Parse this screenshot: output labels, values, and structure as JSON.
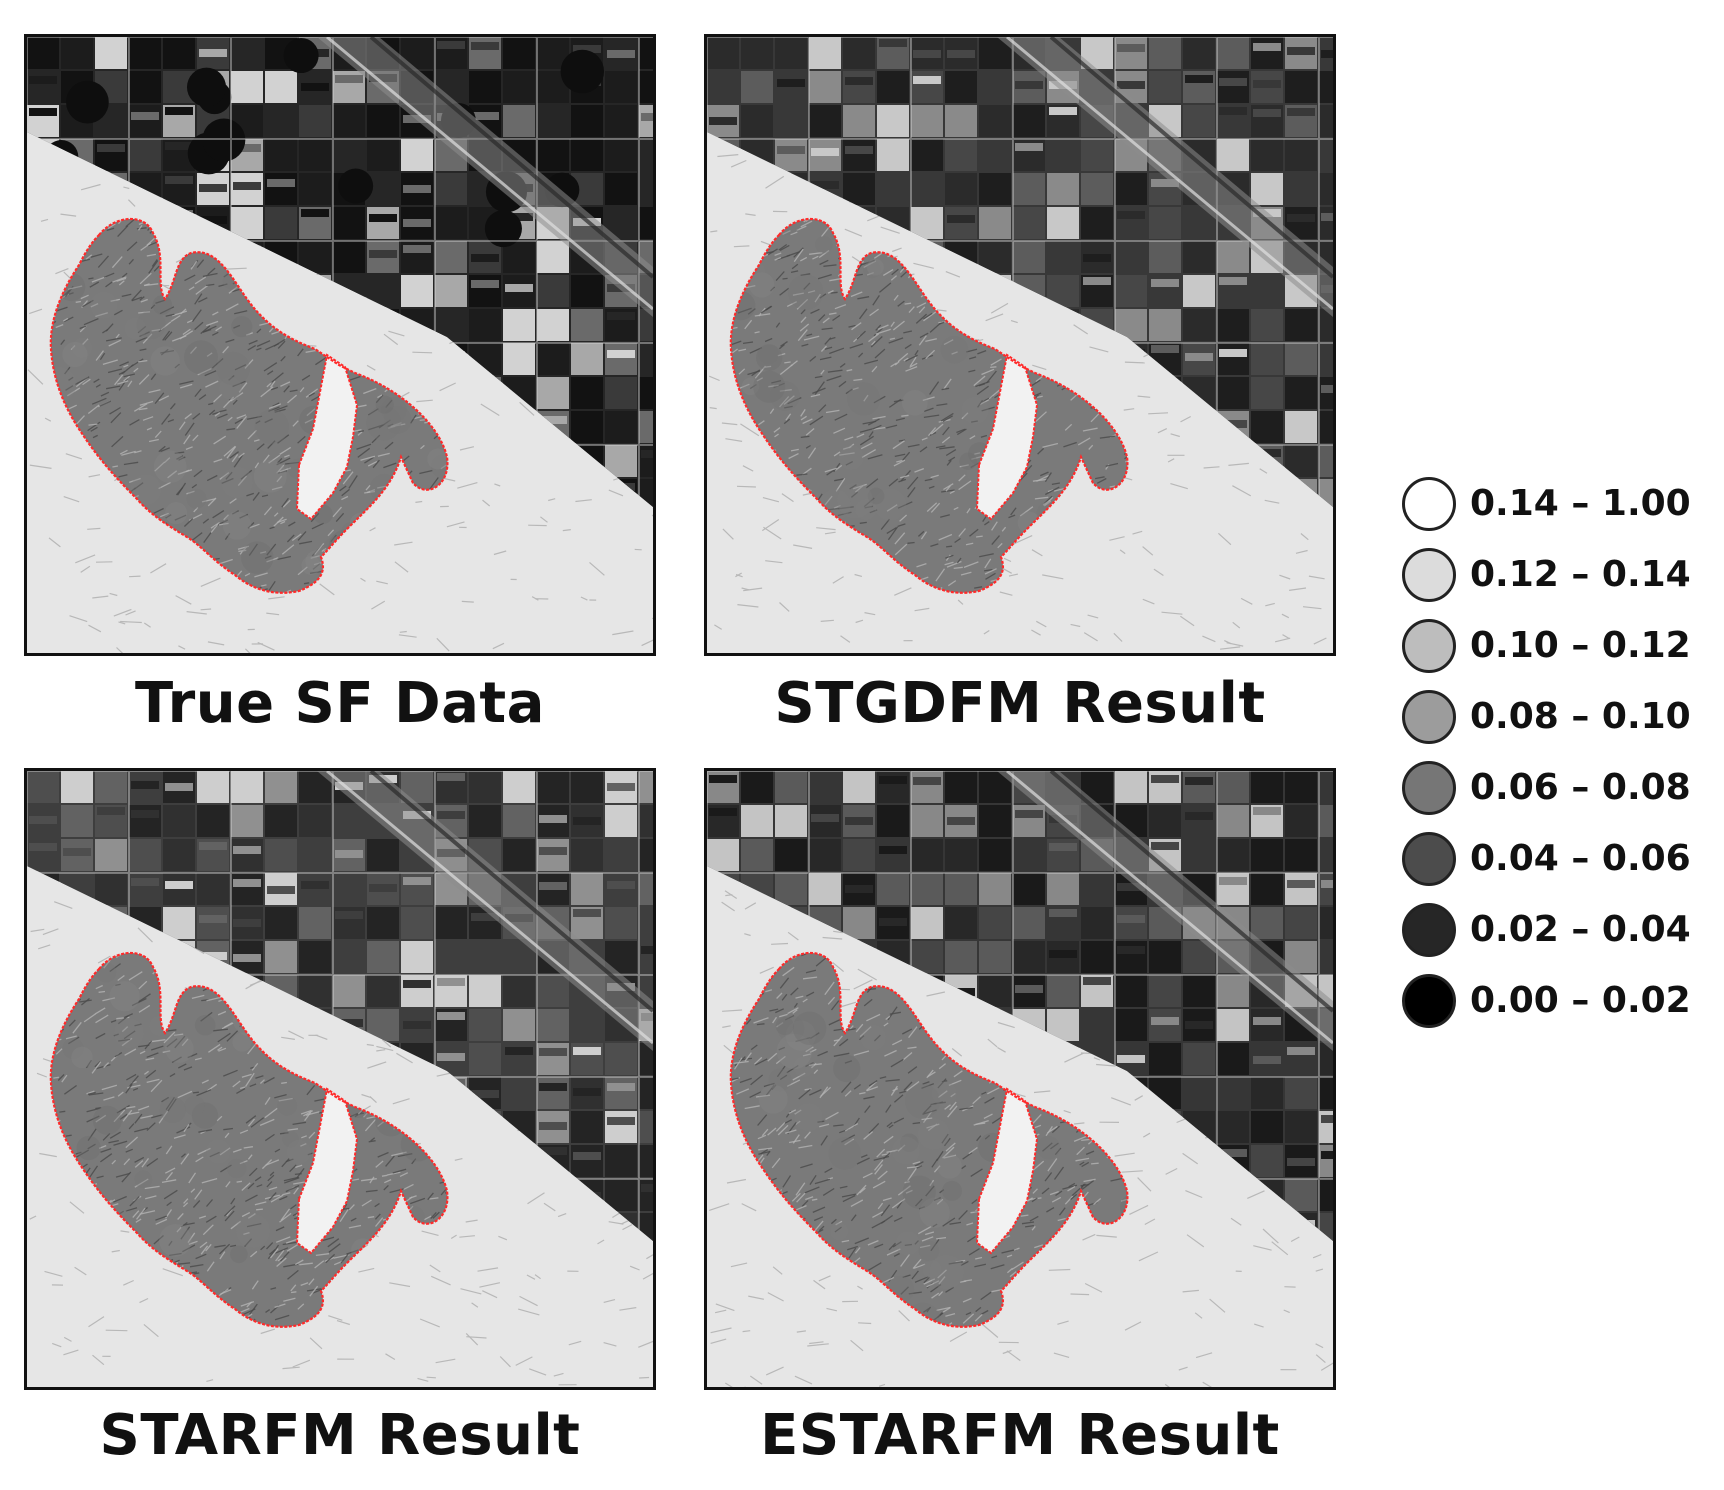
{
  "figure": {
    "panels": [
      {
        "caption": "True SF Data"
      },
      {
        "caption": "STGDFM Result"
      },
      {
        "caption": "STARFM Result"
      },
      {
        "caption": "ESTARFM Result"
      }
    ],
    "legend": {
      "items": [
        {
          "label": "0.14 – 1.00",
          "color": "#ffffff"
        },
        {
          "label": "0.12 – 0.14",
          "color": "#dcdcdc"
        },
        {
          "label": "0.10 – 0.12",
          "color": "#bdbdbd"
        },
        {
          "label": "0.08 – 0.10",
          "color": "#9c9c9c"
        },
        {
          "label": "0.06 – 0.08",
          "color": "#767676"
        },
        {
          "label": "0.04 – 0.06",
          "color": "#4c4c4c"
        },
        {
          "label": "0.02 – 0.04",
          "color": "#262626"
        },
        {
          "label": "0.00 – 0.02",
          "color": "#000000"
        }
      ]
    },
    "colors": {
      "boundary": "#ff2a2a"
    }
  }
}
